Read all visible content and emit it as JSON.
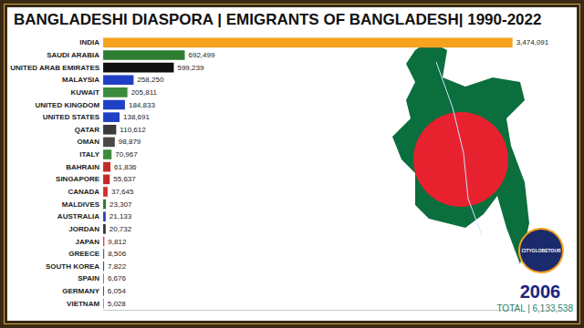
{
  "chart_data": {
    "type": "bar",
    "orientation": "horizontal",
    "title": "BANGLADESHI DIASPORA | EMIGRANTS OF BANGLADESH| 1990-2022",
    "annotations": [
      "2006",
      "TOTAL | 6,133,538",
      "CITYGLOBETOUR"
    ],
    "categories": [
      "INDIA",
      "SAUDI ARABIA",
      "UNITED ARAB EMIRATES",
      "MALAYSIA",
      "KUWAIT",
      "UNITED KINGDOM",
      "UNITED STATES",
      "QATAR",
      "OMAN",
      "ITALY",
      "BAHRAIN",
      "SINGAPORE",
      "CANADA",
      "MALDIVES",
      "AUSTRALIA",
      "JORDAN",
      "JAPAN",
      "GREECE",
      "SOUTH KOREA",
      "SPAIN",
      "GERMANY",
      "VIETNAM"
    ],
    "values": [
      3474091,
      692499,
      599239,
      258250,
      205811,
      184833,
      138691,
      110612,
      98879,
      70967,
      61836,
      55637,
      37645,
      23307,
      21133,
      20732,
      9812,
      8506,
      7822,
      6676,
      6054,
      5028
    ],
    "value_labels": [
      "3,474,091",
      "692,499",
      "599,239",
      "258,250",
      "205,811",
      "184,833",
      "138,691",
      "110,612",
      "98,879",
      "70,967",
      "61,836",
      "55,637",
      "37,645",
      "23,307",
      "21,133",
      "20,732",
      "9,812",
      "8,506",
      "7,822",
      "6,676",
      "6,054",
      "5,028"
    ],
    "colors": [
      "#f6a21e",
      "#2e7d32",
      "#111111",
      "#1f3fc4",
      "#3d8b3d",
      "#1f3fc4",
      "#1f3fc4",
      "#3a3a3a",
      "#4a4a4a",
      "#3d8b3d",
      "#c62828",
      "#c62828",
      "#d32f2f",
      "#2e7d32",
      "#1f3fc4",
      "#2e2e2e",
      "#e53935",
      "#1f5fc4",
      "#1f3fc4",
      "#e53935",
      "#2b2b2b",
      "#d32f2f"
    ],
    "xlim": [
      0,
      3500000
    ],
    "data_labels": true,
    "tick_labels": "y",
    "grid": false
  }
}
